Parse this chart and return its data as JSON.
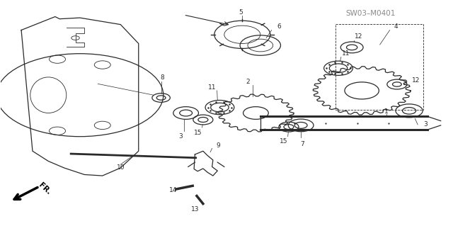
{
  "background_color": "#ffffff",
  "figsize": [
    6.4,
    3.19
  ],
  "dpi": 100,
  "watermark": "SW03–M0401",
  "dark": "#2a2a2a"
}
